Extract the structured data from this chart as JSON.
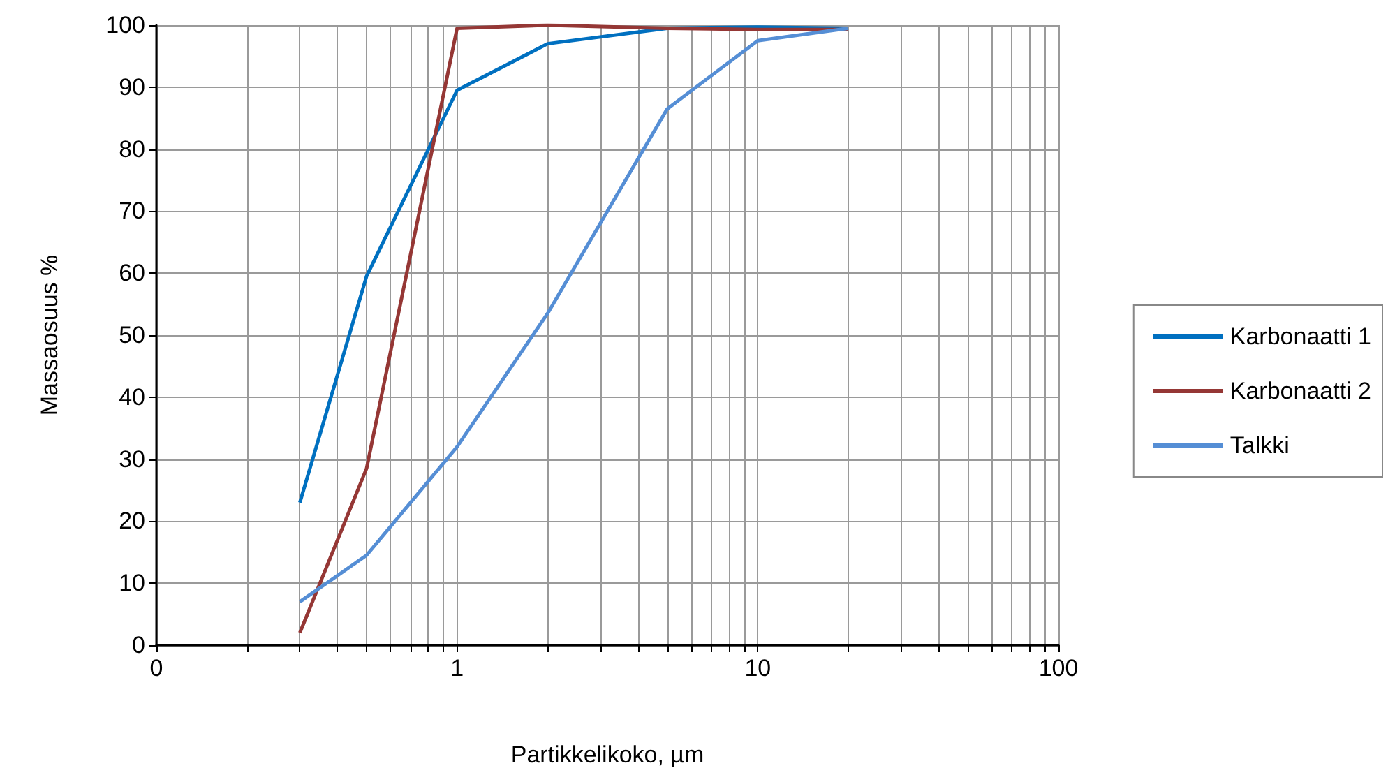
{
  "chart_data": {
    "type": "line",
    "xlabel": "Partikkelikoko, µm",
    "ylabel": "Massaosuus %",
    "log": "x",
    "xlim": [
      0.1,
      100
    ],
    "xticks": [
      {
        "value": 0.1,
        "label": "0"
      },
      {
        "value": 0.2,
        "label": null
      },
      {
        "value": 0.3,
        "label": null
      },
      {
        "value": 0.4,
        "label": null
      },
      {
        "value": 0.5,
        "label": null
      },
      {
        "value": 0.6,
        "label": null
      },
      {
        "value": 0.7,
        "label": null
      },
      {
        "value": 0.8,
        "label": null
      },
      {
        "value": 0.9,
        "label": null
      },
      1,
      {
        "value": 2,
        "label": null
      },
      {
        "value": 3,
        "label": null
      },
      {
        "value": 4,
        "label": null
      },
      {
        "value": 5,
        "label": null
      },
      {
        "value": 6,
        "label": null
      },
      {
        "value": 7,
        "label": null
      },
      {
        "value": 8,
        "label": null
      },
      {
        "value": 9,
        "label": null
      },
      10,
      {
        "value": 20,
        "label": null
      },
      {
        "value": 30,
        "label": null
      },
      {
        "value": 40,
        "label": null
      },
      {
        "value": 50,
        "label": null
      },
      {
        "value": 60,
        "label": null
      },
      {
        "value": 70,
        "label": null
      },
      {
        "value": 80,
        "label": null
      },
      {
        "value": 90,
        "label": null
      },
      100
    ],
    "ylim": [
      0,
      100
    ],
    "yticks": [
      0,
      10,
      20,
      30,
      40,
      50,
      60,
      70,
      80,
      90,
      100
    ],
    "grid": true,
    "legend": "right",
    "marker": "none",
    "line_style": "solid",
    "x": [
      0.3,
      0.5,
      1,
      2,
      5,
      10,
      20
    ],
    "series": [
      {
        "name": "Karbonaatti 1",
        "color": "#0070c0",
        "values": [
          23,
          59.5,
          89.5,
          97,
          99.5,
          99.7,
          99.5
        ]
      },
      {
        "name": "Karbonaatti 2",
        "color": "#953735",
        "values": [
          2,
          28.5,
          99.5,
          100,
          99.5,
          99.3,
          99.3
        ]
      },
      {
        "name": "Talkki",
        "color": "#558ed5",
        "values": [
          7,
          14.5,
          32,
          53.5,
          86.5,
          97.5,
          99.5
        ]
      }
    ]
  }
}
